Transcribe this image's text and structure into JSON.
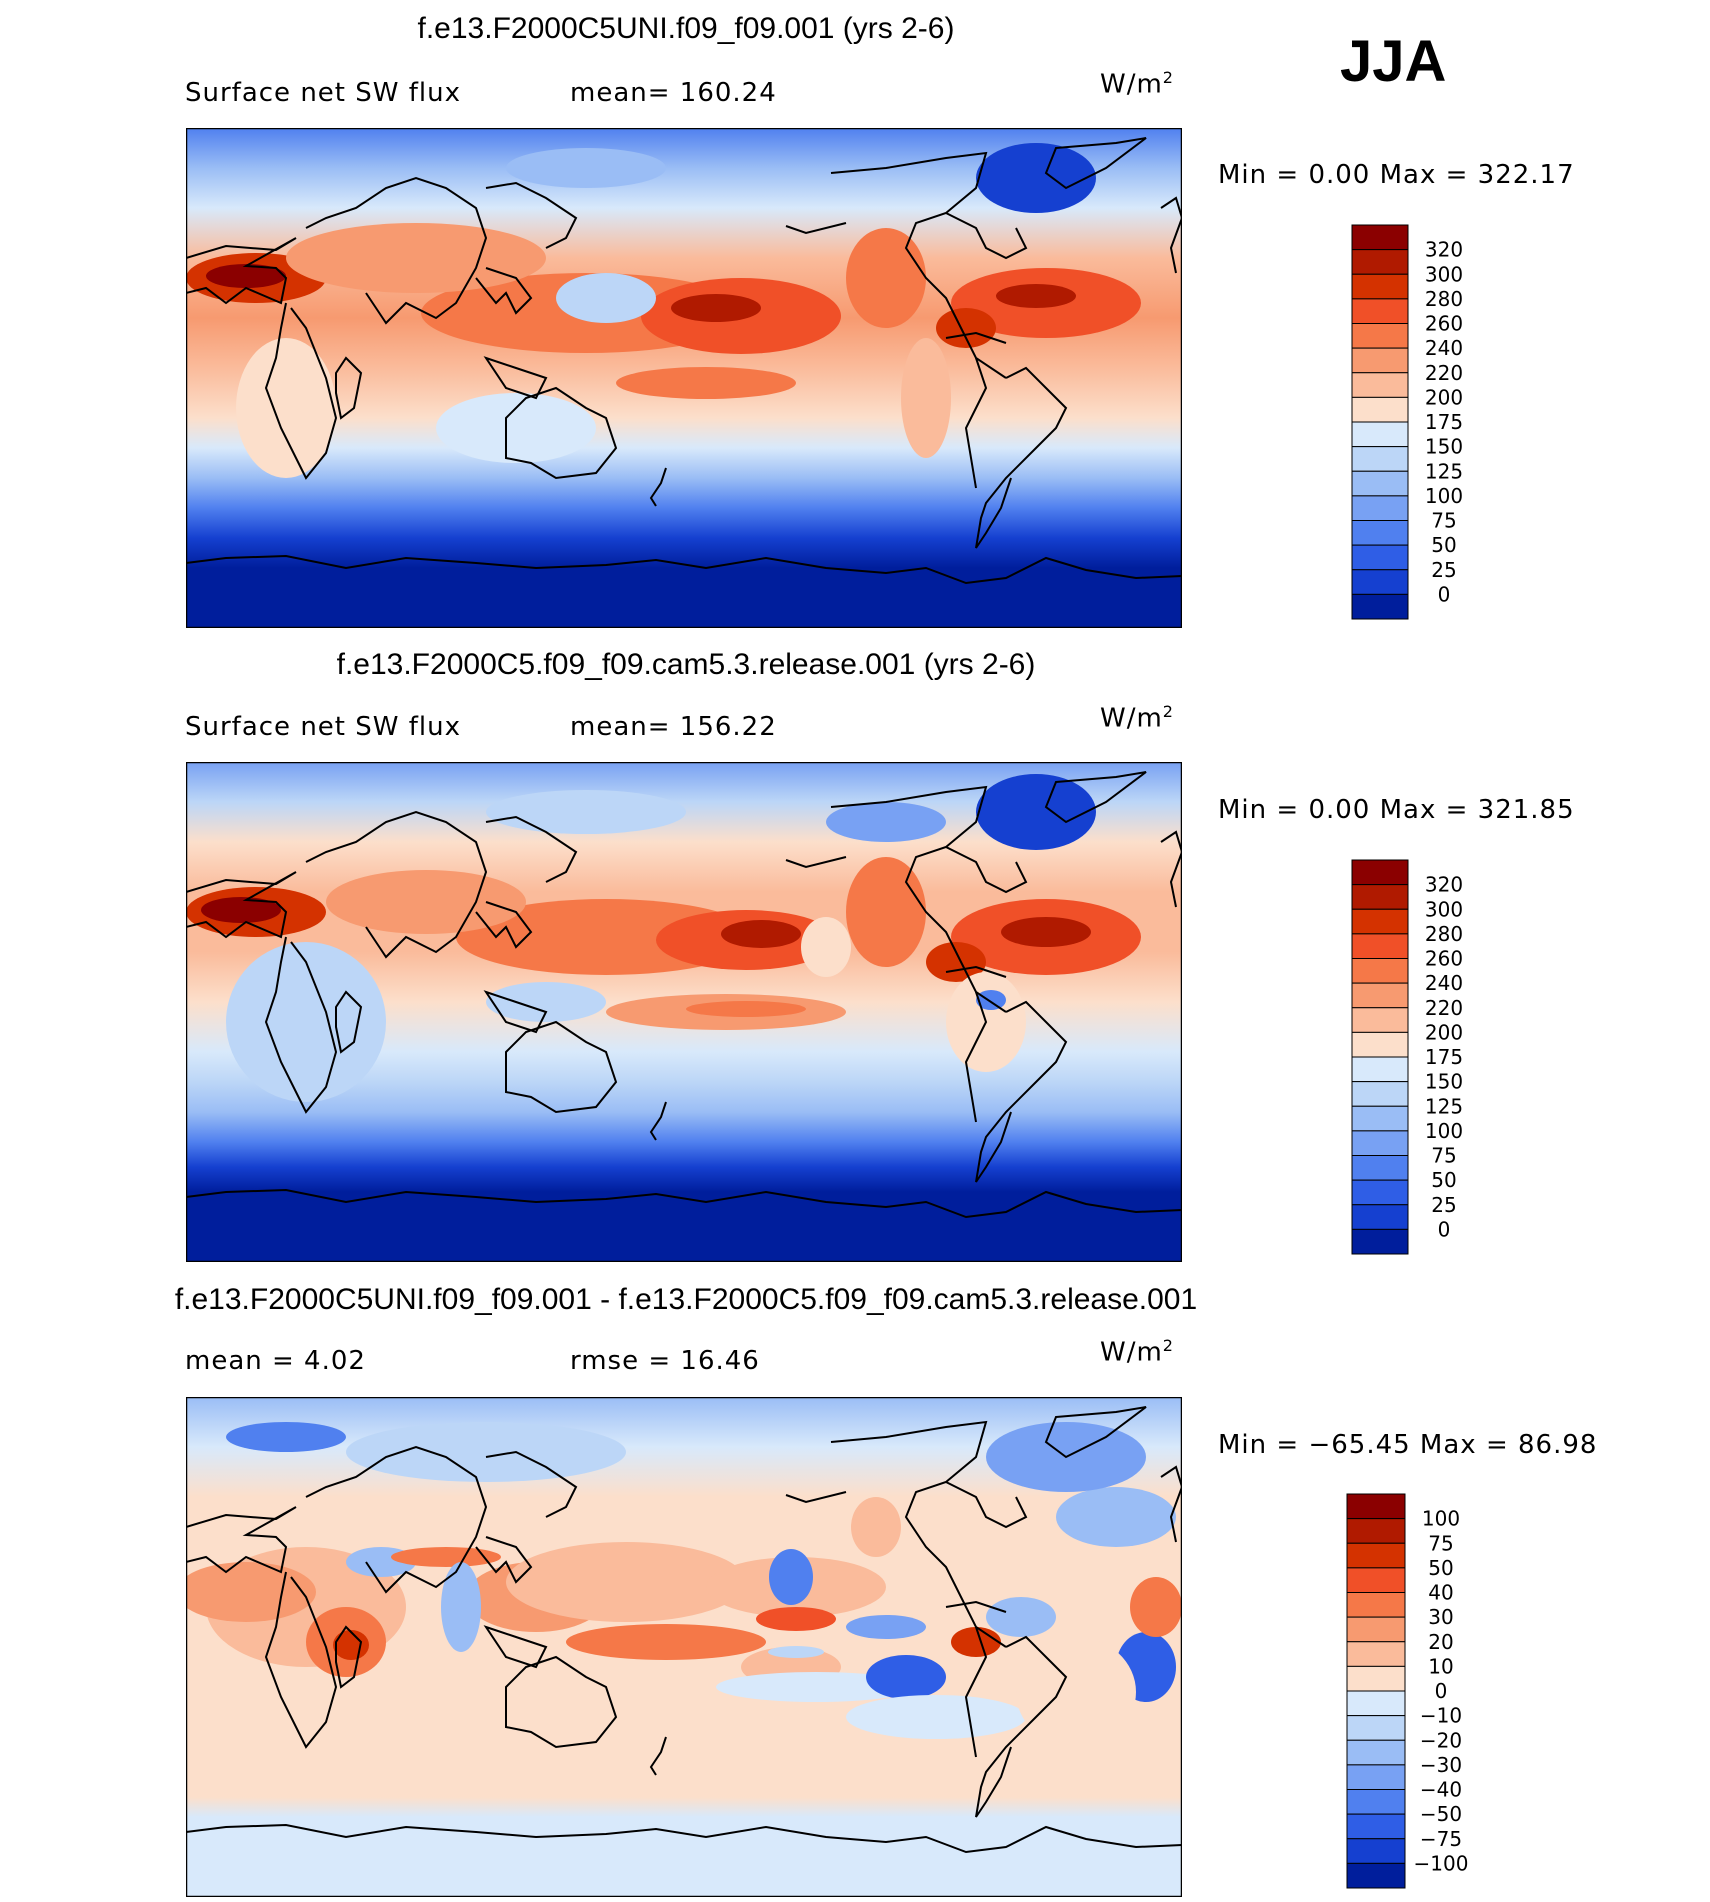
{
  "season": "JJA",
  "unit_base": "W/m",
  "unit_exp": "2",
  "panels": [
    {
      "title": "f.e13.F2000C5UNI.f09_f09.001 (yrs 2-6)",
      "left_label": "Surface net SW flux",
      "right_label": "mean=  160.24",
      "minmax": "Min =    0.00 Max  =  322.17",
      "colorbar_labels": [
        "320",
        "300",
        "280",
        "260",
        "240",
        "220",
        "200",
        "175",
        "150",
        "125",
        "100",
        "75",
        "50",
        "25",
        "0"
      ],
      "colors": [
        "#8b0000",
        "#b01a00",
        "#d43200",
        "#f05028",
        "#f57848",
        "#f79a70",
        "#fabb9b",
        "#fcdfcb",
        "#d8e9fb",
        "#bcd6f7",
        "#9abdf5",
        "#78a1f3",
        "#5080ef",
        "#2f5ee6",
        "#1540d0",
        "#001e9c"
      ]
    },
    {
      "title": "f.e13.F2000C5.f09_f09.cam5.3.release.001 (yrs 2-6)",
      "left_label": "Surface net SW flux",
      "right_label": "mean=  156.22",
      "minmax": "Min =    0.00 Max  =  321.85",
      "colorbar_labels": [
        "320",
        "300",
        "280",
        "260",
        "240",
        "220",
        "200",
        "175",
        "150",
        "125",
        "100",
        "75",
        "50",
        "25",
        "0"
      ],
      "colors": [
        "#8b0000",
        "#b01a00",
        "#d43200",
        "#f05028",
        "#f57848",
        "#f79a70",
        "#fabb9b",
        "#fcdfcb",
        "#d8e9fb",
        "#bcd6f7",
        "#9abdf5",
        "#78a1f3",
        "#5080ef",
        "#2f5ee6",
        "#1540d0",
        "#001e9c"
      ]
    },
    {
      "title": "f.e13.F2000C5UNI.f09_f09.001 - f.e13.F2000C5.f09_f09.cam5.3.release.001",
      "left_label": "mean =     4.02",
      "right_label": "rmse =    16.46",
      "minmax": "Min = −65.45 Max =   86.98",
      "colorbar_labels": [
        "100",
        "75",
        "50",
        "40",
        "30",
        "20",
        "10",
        "0",
        "−10",
        "−20",
        "−30",
        "−40",
        "−50",
        "−75",
        "−100"
      ],
      "colors": [
        "#8b0000",
        "#b01a00",
        "#d43200",
        "#f05028",
        "#f57848",
        "#f79a70",
        "#fabb9b",
        "#fcdfcb",
        "#d8e9fb",
        "#bcd6f7",
        "#9abdf5",
        "#78a1f3",
        "#5080ef",
        "#2f5ee6",
        "#1540d0",
        "#001e9c"
      ]
    }
  ]
}
